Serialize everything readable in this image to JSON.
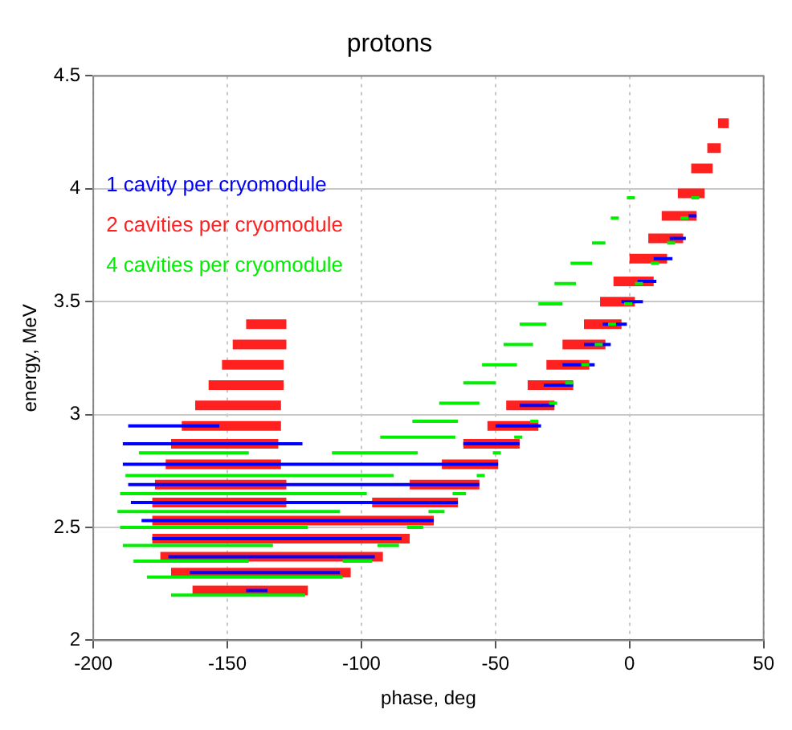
{
  "chart_data": {
    "type": "line",
    "title": "protons",
    "xlabel": "phase, deg",
    "ylabel": "energy, MeV",
    "xlim": [
      -200,
      50
    ],
    "xticks": [
      -200,
      -150,
      -100,
      -50,
      0,
      50
    ],
    "ylim": [
      2,
      4.5
    ],
    "yticks": [
      2,
      2.5,
      3,
      3.5,
      4,
      4.5
    ],
    "grid": true,
    "legend": "top left",
    "series": [
      {
        "name": "1 cavity per cryomodule",
        "color": "#0000ff",
        "x": [
          -187,
          -153,
          null,
          -50,
          -33,
          null,
          -189,
          -122,
          null,
          -62,
          -41,
          null,
          -189,
          -49,
          null,
          -187,
          -56,
          null,
          -186,
          -64,
          null,
          -182,
          -73,
          null,
          -178,
          -85,
          null,
          -172,
          -95,
          null,
          -164,
          -108,
          null,
          -143,
          -135,
          null,
          22,
          25,
          null,
          15,
          21,
          null,
          9,
          16,
          null,
          3,
          10,
          null,
          -3,
          5,
          null,
          -10,
          -1,
          null,
          -17,
          -7,
          null,
          -25,
          -13,
          null,
          -32,
          -21,
          null,
          -41,
          -28
        ],
        "values": [
          2.95,
          2.95,
          null,
          2.95,
          2.95,
          null,
          2.87,
          2.87,
          null,
          2.87,
          2.87,
          null,
          2.78,
          2.78,
          null,
          2.69,
          2.69,
          null,
          2.61,
          2.61,
          null,
          2.53,
          2.53,
          null,
          2.45,
          2.45,
          null,
          2.37,
          2.37,
          null,
          2.3,
          2.3,
          null,
          2.22,
          2.22,
          null,
          3.88,
          3.88,
          null,
          3.78,
          3.78,
          null,
          3.69,
          3.69,
          null,
          3.59,
          3.59,
          null,
          3.5,
          3.5,
          null,
          3.4,
          3.4,
          null,
          3.31,
          3.31,
          null,
          3.22,
          3.22,
          null,
          3.13,
          3.13,
          null,
          3.04,
          3.04
        ]
      },
      {
        "name": "2 cavities per cryomodule",
        "color": "#ff2020",
        "x": [
          -143,
          -128,
          null,
          -148,
          -128,
          null,
          -152,
          -129,
          null,
          -157,
          -129,
          null,
          -162,
          -130,
          null,
          -167,
          -130,
          null,
          -171,
          -131,
          null,
          -173,
          -130,
          null,
          -177,
          -128,
          null,
          -178,
          -128,
          null,
          -178,
          -73,
          null,
          -178,
          -82,
          null,
          -175,
          -92,
          null,
          -171,
          -104,
          null,
          -163,
          -120,
          null,
          33,
          37,
          null,
          29,
          34,
          null,
          23,
          31,
          null,
          18,
          28,
          null,
          12,
          25,
          null,
          7,
          20,
          null,
          0,
          14,
          null,
          -6,
          9,
          null,
          -11,
          2,
          null,
          -17,
          -3,
          null,
          -25,
          -9,
          null,
          -31,
          -15,
          null,
          -38,
          -21,
          null,
          -46,
          -28,
          null,
          -53,
          -34,
          null,
          -62,
          -41,
          null,
          -70,
          -49,
          null,
          -82,
          -56,
          null,
          -96,
          -64
        ],
        "values": [
          3.4,
          3.4,
          null,
          3.31,
          3.31,
          null,
          3.22,
          3.22,
          null,
          3.13,
          3.13,
          null,
          3.04,
          3.04,
          null,
          2.95,
          2.95,
          null,
          2.87,
          2.87,
          null,
          2.78,
          2.78,
          null,
          2.69,
          2.69,
          null,
          2.61,
          2.61,
          null,
          2.53,
          2.53,
          null,
          2.45,
          2.45,
          null,
          2.37,
          2.37,
          null,
          2.3,
          2.3,
          null,
          2.22,
          2.22,
          null,
          4.29,
          4.29,
          null,
          4.18,
          4.18,
          null,
          4.09,
          4.09,
          null,
          3.98,
          3.98,
          null,
          3.88,
          3.88,
          null,
          3.78,
          3.78,
          null,
          3.69,
          3.69,
          null,
          3.59,
          3.59,
          null,
          3.5,
          3.5,
          null,
          3.4,
          3.4,
          null,
          3.31,
          3.31,
          null,
          3.22,
          3.22,
          null,
          3.13,
          3.13,
          null,
          3.04,
          3.04,
          null,
          2.95,
          2.95,
          null,
          2.87,
          2.87,
          null,
          2.78,
          2.78,
          null,
          2.69,
          2.69,
          null,
          2.61,
          2.61
        ]
      },
      {
        "name": "4 cavities per cryomodule",
        "color": "#00ee00",
        "x": [
          -1,
          2,
          null,
          23,
          26,
          null,
          -7,
          -4,
          null,
          19,
          22,
          null,
          -14,
          -9,
          null,
          14,
          17,
          null,
          -22,
          -14,
          null,
          8,
          11,
          null,
          -28,
          -20,
          null,
          2,
          5,
          null,
          -34,
          -25,
          null,
          -2,
          1,
          null,
          -41,
          -31,
          null,
          -8,
          -5,
          null,
          -47,
          -36,
          null,
          -13,
          -10,
          null,
          -55,
          -42,
          null,
          -18,
          -15,
          null,
          -62,
          -50,
          null,
          -24,
          -21,
          null,
          -71,
          -56,
          null,
          -30,
          -27,
          null,
          -81,
          -64,
          null,
          -37,
          -34,
          null,
          -93,
          -65,
          null,
          -43,
          -40,
          null,
          -183,
          -142,
          null,
          -111,
          -79,
          null,
          -51,
          -48,
          null,
          -188,
          -88,
          null,
          -57,
          -54,
          null,
          -190,
          -98,
          null,
          -66,
          -61,
          null,
          -191,
          -108,
          null,
          -75,
          -69,
          null,
          -190,
          -120,
          null,
          -83,
          -77,
          null,
          -189,
          -133,
          null,
          -94,
          -86,
          null,
          -185,
          -142,
          null,
          -107,
          -96,
          null,
          -180,
          -107,
          null,
          -171,
          -121
        ],
        "values": [
          3.96,
          3.96,
          null,
          3.96,
          3.96,
          null,
          3.87,
          3.87,
          null,
          3.87,
          3.87,
          null,
          3.76,
          3.76,
          null,
          3.76,
          3.76,
          null,
          3.67,
          3.67,
          null,
          3.67,
          3.67,
          null,
          3.58,
          3.58,
          null,
          3.58,
          3.58,
          null,
          3.49,
          3.49,
          null,
          3.49,
          3.49,
          null,
          3.4,
          3.4,
          null,
          3.4,
          3.4,
          null,
          3.31,
          3.31,
          null,
          3.31,
          3.31,
          null,
          3.22,
          3.22,
          null,
          3.22,
          3.22,
          null,
          3.14,
          3.14,
          null,
          3.14,
          3.14,
          null,
          3.05,
          3.05,
          null,
          3.05,
          3.05,
          null,
          2.97,
          2.97,
          null,
          2.97,
          2.97,
          null,
          2.9,
          2.9,
          null,
          2.9,
          2.9,
          null,
          2.83,
          2.83,
          null,
          2.83,
          2.83,
          null,
          2.83,
          2.83,
          null,
          2.73,
          2.73,
          null,
          2.73,
          2.73,
          null,
          2.65,
          2.65,
          null,
          2.65,
          2.65,
          null,
          2.57,
          2.57,
          null,
          2.57,
          2.57,
          null,
          2.5,
          2.5,
          null,
          2.5,
          2.5,
          null,
          2.42,
          2.42,
          null,
          2.42,
          2.42,
          null,
          2.35,
          2.35,
          null,
          2.35,
          2.35,
          null,
          2.28,
          2.28,
          null,
          2.2,
          2.2
        ]
      }
    ]
  }
}
